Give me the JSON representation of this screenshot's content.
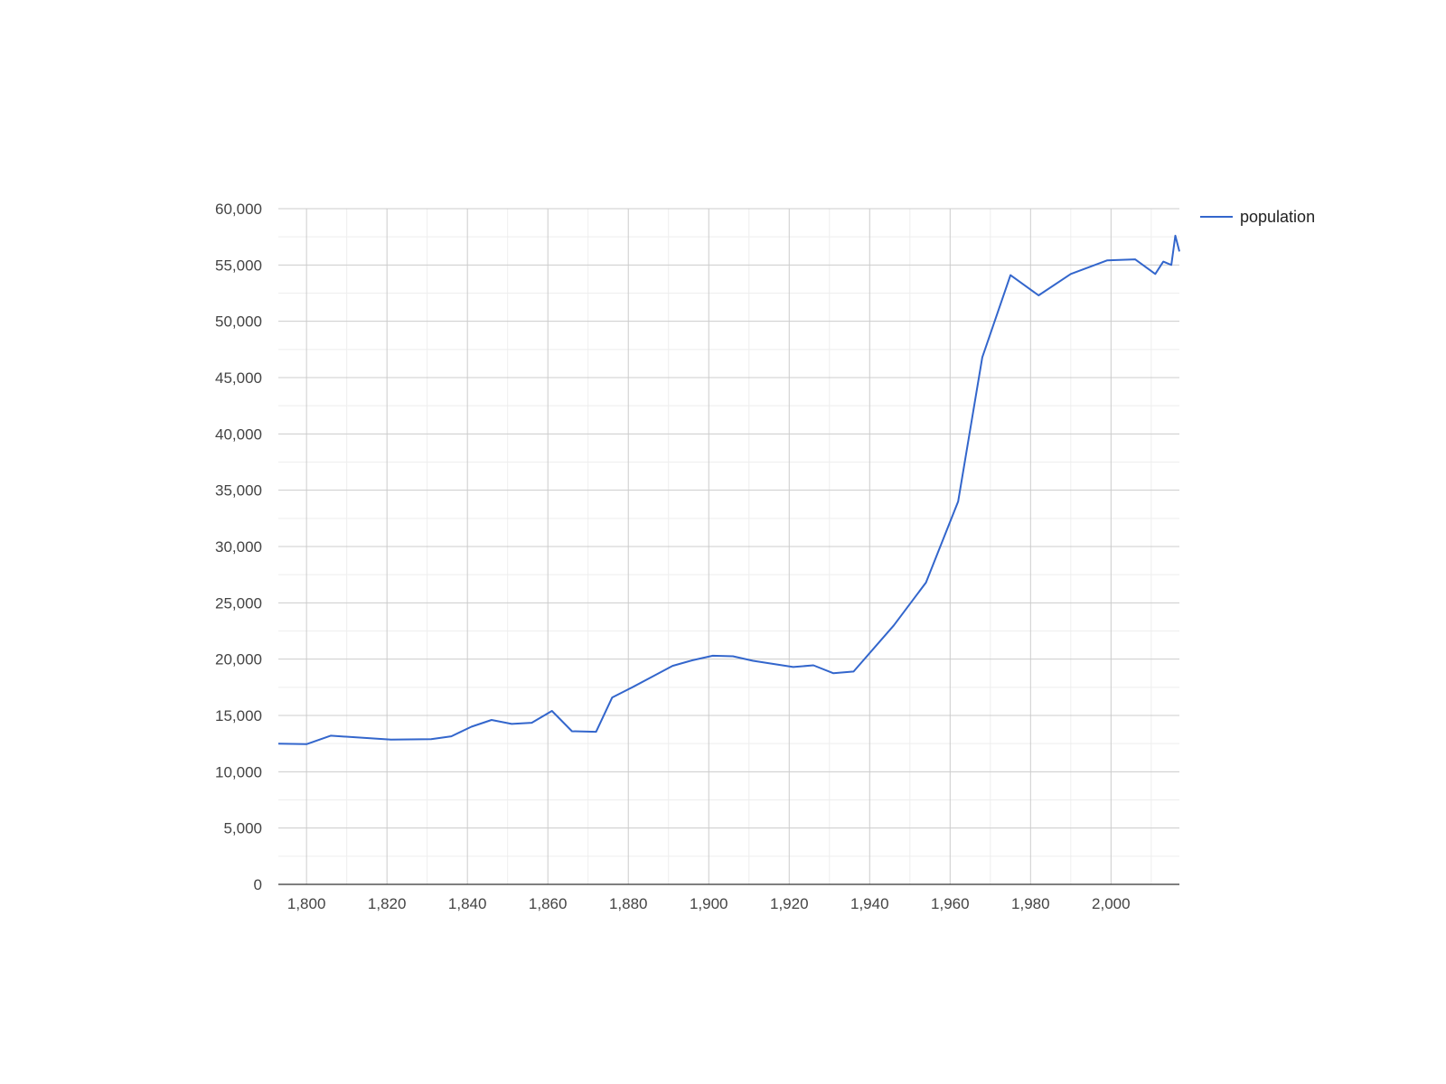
{
  "chart_data": {
    "type": "line",
    "title": "",
    "xlabel": "",
    "ylabel": "",
    "xlim": [
      1793,
      2017
    ],
    "ylim": [
      0,
      60000
    ],
    "x_ticks": [
      1800,
      1820,
      1840,
      1860,
      1880,
      1900,
      1920,
      1940,
      1960,
      1980,
      2000
    ],
    "y_ticks": [
      0,
      5000,
      10000,
      15000,
      20000,
      25000,
      30000,
      35000,
      40000,
      45000,
      50000,
      55000,
      60000
    ],
    "x_tick_labels": [
      "1,800",
      "1,820",
      "1,840",
      "1,860",
      "1,880",
      "1,900",
      "1,920",
      "1,940",
      "1,960",
      "1,980",
      "2,000"
    ],
    "y_tick_labels": [
      "0",
      "5,000",
      "10,000",
      "15,000",
      "20,000",
      "25,000",
      "30,000",
      "35,000",
      "40,000",
      "45,000",
      "50,000",
      "55,000",
      "60,000"
    ],
    "grid": true,
    "legend": "right",
    "series": [
      {
        "name": "population",
        "color": "#3366cc",
        "x": [
          1793,
          1800,
          1806,
          1821,
          1831,
          1836,
          1841,
          1846,
          1851,
          1856,
          1861,
          1866,
          1872,
          1876,
          1881,
          1886,
          1891,
          1896,
          1901,
          1906,
          1911,
          1921,
          1926,
          1931,
          1936,
          1946,
          1954,
          1962,
          1968,
          1975,
          1982,
          1990,
          1999,
          2006,
          2011,
          2013,
          2015,
          2016,
          2017
        ],
        "y": [
          12500,
          12450,
          13200,
          12850,
          12900,
          13150,
          14000,
          14600,
          14250,
          14350,
          15400,
          13600,
          13550,
          16600,
          17500,
          18450,
          19400,
          19900,
          20300,
          20250,
          19850,
          19300,
          19450,
          18750,
          18900,
          23000,
          26800,
          34000,
          46800,
          54100,
          52300,
          54200,
          55400,
          55500,
          54200,
          55300,
          55000,
          57600,
          56200
        ]
      }
    ]
  }
}
